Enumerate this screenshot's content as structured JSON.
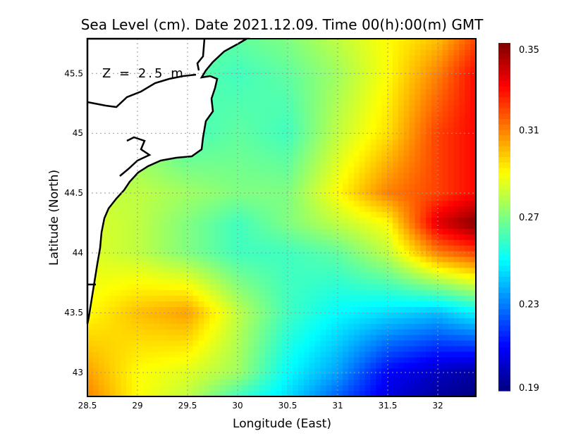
{
  "chart_data": {
    "type": "heatmap",
    "title": "Sea Level (cm). Date 2021.12.09. Time 00(h):00(m) GMT",
    "xlabel": "Longitude (East)",
    "ylabel": "Latitude (North)",
    "annotation": "Z = 2.5 m",
    "xlim": [
      28.5,
      32.38
    ],
    "ylim": [
      42.8,
      45.79
    ],
    "xticks": [
      "28.5",
      "29",
      "29.5",
      "30",
      "30.5",
      "31",
      "31.5",
      "32"
    ],
    "xtick_values": [
      28.5,
      29,
      29.5,
      30,
      30.5,
      31,
      31.5,
      32
    ],
    "yticks": [
      "43",
      "43.5",
      "44",
      "44.5",
      "45",
      "45.5"
    ],
    "ytick_values": [
      43,
      43.5,
      44,
      44.5,
      45,
      45.5
    ],
    "grid": true,
    "colorbar": {
      "range": [
        0.19,
        0.35
      ],
      "tick_labels": [
        "0.35",
        "0.31",
        "0.27",
        "0.23",
        "0.19"
      ],
      "tick_values": [
        0.35,
        0.31,
        0.27,
        0.23,
        0.19
      ],
      "colormap": "jet",
      "position": "right"
    },
    "grid_lon": [
      28.5,
      29,
      29.5,
      30,
      30.5,
      31,
      31.5,
      32,
      32.4
    ],
    "grid_lat": [
      45.79,
      45.5,
      45.0,
      44.5,
      44.25,
      44.0,
      43.5,
      43.0,
      42.8
    ],
    "values": [
      [
        0.27,
        0.27,
        0.265,
        0.265,
        0.27,
        0.28,
        0.29,
        0.3,
        0.32
      ],
      [
        0.27,
        0.27,
        0.265,
        0.26,
        0.265,
        0.275,
        0.29,
        0.31,
        0.33
      ],
      [
        0.27,
        0.27,
        0.26,
        0.265,
        0.26,
        0.28,
        0.295,
        0.32,
        0.33
      ],
      [
        0.28,
        0.28,
        0.275,
        0.27,
        0.27,
        0.29,
        0.31,
        0.32,
        0.33
      ],
      [
        0.285,
        0.28,
        0.27,
        0.26,
        0.27,
        0.28,
        0.29,
        0.335,
        0.35
      ],
      [
        0.285,
        0.28,
        0.27,
        0.26,
        0.26,
        0.265,
        0.28,
        0.31,
        0.32
      ],
      [
        0.29,
        0.3,
        0.305,
        0.28,
        0.26,
        0.25,
        0.245,
        0.24,
        0.25
      ],
      [
        0.305,
        0.29,
        0.285,
        0.275,
        0.25,
        0.235,
        0.21,
        0.2,
        0.195
      ],
      [
        0.31,
        0.29,
        0.28,
        0.26,
        0.245,
        0.225,
        0.205,
        0.195,
        0.19
      ]
    ]
  }
}
